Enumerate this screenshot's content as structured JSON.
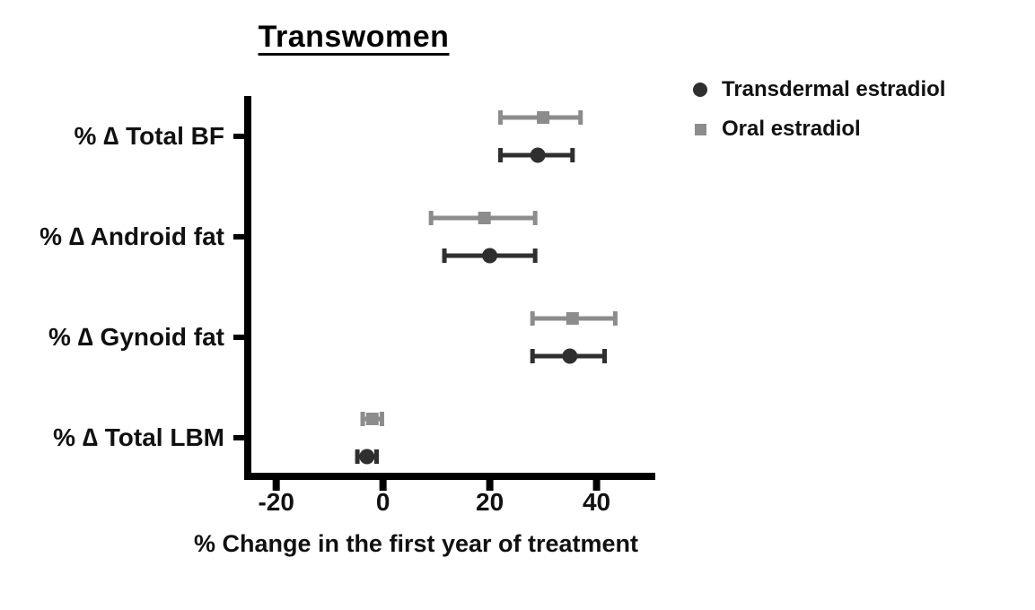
{
  "chart_data": {
    "type": "scatter",
    "subtype": "horizontal dot plot with error bars (forest-style), grouped by category",
    "title": "Transwomen",
    "xlabel": "% Change in the first year of treatment",
    "ylabel": "",
    "categories": [
      "% ∆ Total BF",
      "% ∆ Android fat",
      "% ∆ Gynoid fat",
      "% ∆ Total LBM"
    ],
    "xticks": [
      -20,
      0,
      20,
      40
    ],
    "xlim": [
      -26,
      51
    ],
    "grid": false,
    "legend_position": "top-right",
    "series": [
      {
        "name": "Oral estradiol",
        "marker": "square",
        "color": "#8c8c8c",
        "position_in_group": "top",
        "values": [
          30,
          19,
          35.5,
          -2
        ],
        "ci_low": [
          22,
          9,
          28,
          -3.8
        ],
        "ci_high": [
          37,
          28.5,
          43.5,
          -0.2
        ]
      },
      {
        "name": "Transdermal estradiol",
        "marker": "circle",
        "color": "#2f2f2f",
        "position_in_group": "bottom",
        "values": [
          29,
          20,
          35,
          -3
        ],
        "ci_low": [
          22,
          11.5,
          28,
          -4.8
        ],
        "ci_high": [
          35.5,
          28.5,
          41.5,
          -1.2
        ]
      }
    ],
    "legend": [
      {
        "label": "Transdermal estradiol",
        "marker": "circle",
        "color": "#2f2f2f"
      },
      {
        "label": "Oral estradiol",
        "marker": "square",
        "color": "#8c8c8c"
      }
    ],
    "axis_color": "#000000"
  }
}
